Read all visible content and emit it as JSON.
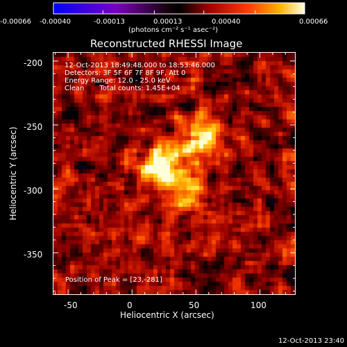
{
  "colorbar": {
    "ticks": [
      "-0.00066",
      "-0.00040",
      "-0.00013",
      "0.00013",
      "0.00040",
      "0.00066"
    ],
    "unit_label": "(photons cm⁻² s⁻¹ asec⁻²)"
  },
  "chart_data": {
    "type": "heatmap",
    "title": "Reconstructed RHESSI Image",
    "xlabel": "Heliocentric X (arcsec)",
    "ylabel": "Heliocentric Y (arcsec)",
    "xlim": [
      -62,
      128
    ],
    "ylim": [
      -383,
      -193
    ],
    "xticks": [
      -50,
      0,
      50,
      100
    ],
    "yticks": [
      -200,
      -250,
      -300,
      -350
    ],
    "colorbar_range": [
      -0.00066,
      0.00066
    ],
    "peak": [
      23,
      -281
    ],
    "sources": [
      {
        "x": 23,
        "y": -281,
        "value": 0.00066
      },
      {
        "x": 55,
        "y": -262,
        "value": 0.00055
      },
      {
        "x": 45,
        "y": -300,
        "value": 0.0005
      }
    ]
  },
  "info": {
    "line1": "12-Oct-2013 18:49:48.000 to 18:53:46.000",
    "line2": "Detectors: 3F 5F 6F 7F 8F 9F, Att 0",
    "line3": "Energy Range: 12.0 - 25.0 keV",
    "line4a": "Clean",
    "line4b": "Total counts: 1.45E+04"
  },
  "peak_label": "Position of Peak = [23,-281]",
  "footer_time": "12-Oct-2013 23:40"
}
